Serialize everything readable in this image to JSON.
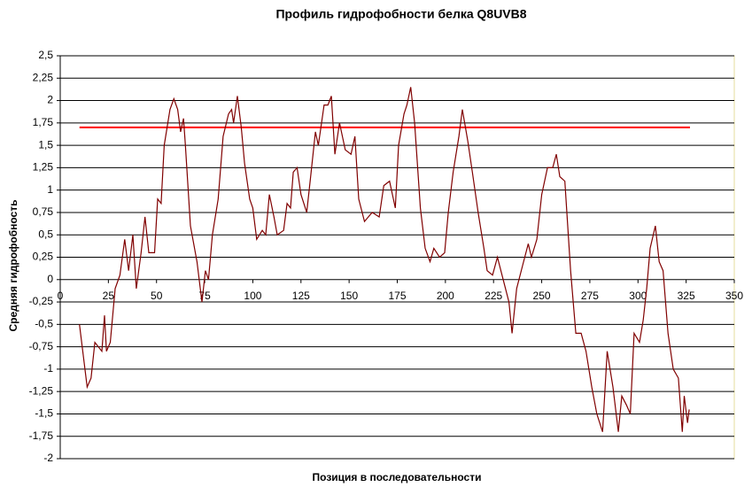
{
  "chart_data": {
    "type": "line",
    "title": "Профиль гидрофобности белка Q8UVB8",
    "x_label": "Позиция в последовательности",
    "y_label": "Средняя гидрофобность",
    "color": "#800000",
    "x": [
      10,
      14,
      16,
      18,
      21.6,
      23,
      24,
      26,
      28.5,
      31,
      33.5,
      35.5,
      37.7,
      39.5,
      42,
      44,
      46,
      49,
      50.6,
      52.4,
      54,
      57,
      59,
      61,
      62.5,
      64,
      65,
      67.6,
      71,
      73.6,
      75.4,
      77,
      79,
      82,
      84.6,
      87.4,
      89,
      90,
      92,
      94,
      95.7,
      98.4,
      100,
      102,
      104.9,
      106.7,
      108.6,
      111,
      112.7,
      116,
      117.8,
      119.6,
      121,
      123,
      125,
      128,
      130,
      132.5,
      134,
      137,
      139,
      140.8,
      142.6,
      145,
      148,
      151,
      153,
      155,
      158,
      162,
      165.6,
      168,
      171,
      174,
      175.7,
      178.5,
      180,
      182,
      184,
      187,
      189.5,
      192,
      194,
      197,
      199.6,
      201.5,
      204,
      207,
      208.8,
      211.6,
      214,
      217,
      220,
      221.7,
      224.5,
      227,
      230,
      233,
      234.6,
      237,
      240,
      243,
      244.7,
      247.5,
      250,
      253,
      255.7,
      257.6,
      259.4,
      262,
      265,
      267.7,
      270.5,
      273,
      276,
      278.6,
      281.6,
      284,
      287,
      289.8,
      291.6,
      294,
      296,
      298,
      300.8,
      302.7,
      304.5,
      306.3,
      309,
      311,
      313,
      315.6,
      318.3,
      321,
      323,
      324,
      325.7,
      326.6
    ],
    "values": [
      -0.5,
      -1.2,
      -1.1,
      -0.7,
      -0.8,
      -0.4,
      -0.8,
      -0.7,
      -0.1,
      0.05,
      0.45,
      0.1,
      0.5,
      -0.1,
      0.3,
      0.7,
      0.3,
      0.3,
      0.9,
      0.85,
      1.5,
      1.9,
      2.02,
      1.9,
      1.65,
      1.8,
      1.5,
      0.6,
      0.2,
      -0.25,
      0.1,
      0,
      0.5,
      0.9,
      1.6,
      1.85,
      1.9,
      1.75,
      2.05,
      1.7,
      1.3,
      0.9,
      0.8,
      0.45,
      0.55,
      0.5,
      0.95,
      0.7,
      0.5,
      0.55,
      0.85,
      0.8,
      1.2,
      1.25,
      0.95,
      0.75,
      1.15,
      1.65,
      1.5,
      1.95,
      1.95,
      2.05,
      1.4,
      1.75,
      1.45,
      1.4,
      1.6,
      0.9,
      0.65,
      0.75,
      0.7,
      1.05,
      1.1,
      0.8,
      1.5,
      1.85,
      1.95,
      2.15,
      1.75,
      0.8,
      0.35,
      0.2,
      0.35,
      0.25,
      0.3,
      0.75,
      1.2,
      1.6,
      1.9,
      1.55,
      1.2,
      0.75,
      0.35,
      0.1,
      0.05,
      0.25,
      0,
      -0.25,
      -0.6,
      -0.1,
      0.15,
      0.4,
      0.25,
      0.45,
      0.95,
      1.25,
      1.25,
      1.4,
      1.15,
      1.1,
      0.1,
      -0.6,
      -0.6,
      -0.8,
      -1.2,
      -1.5,
      -1.7,
      -0.8,
      -1.2,
      -1.7,
      -1.3,
      -1.4,
      -1.5,
      -0.6,
      -0.7,
      -0.45,
      -0.1,
      0.35,
      0.6,
      0.2,
      0.1,
      -0.6,
      -1.0,
      -1.1,
      -1.7,
      -1.3,
      -1.6,
      -1.45
    ],
    "threshold": {
      "x": [
        10,
        327
      ],
      "value": 1.7,
      "color": "#ff0000"
    },
    "xlim": [
      0,
      350
    ],
    "xticks": [
      0,
      25,
      50,
      75,
      100,
      125,
      150,
      175,
      200,
      225,
      250,
      275,
      300,
      325,
      350
    ],
    "ylim": [
      -2,
      2.5
    ],
    "yticks": [
      {
        "value": 2.5,
        "label": "2,5"
      },
      {
        "value": 2.25,
        "label": "2,25"
      },
      2,
      {
        "value": 1.75,
        "label": "1,75"
      },
      {
        "value": 1.5,
        "label": "1,5"
      },
      {
        "value": 1.25,
        "label": "1,25"
      },
      1,
      {
        "value": 0.75,
        "label": "0,75"
      },
      {
        "value": 0.5,
        "label": "0,5"
      },
      {
        "value": 0.25,
        "label": "0,25"
      },
      0,
      {
        "value": -0.25,
        "label": "-0,25"
      },
      {
        "value": -0.5,
        "label": "-0,5"
      },
      {
        "value": -0.75,
        "label": "-0,75"
      },
      -1,
      {
        "value": -1.25,
        "label": "-1,25"
      },
      {
        "value": -1.5,
        "label": "-1,5"
      },
      {
        "value": -1.75,
        "label": "-1,75"
      },
      -2
    ],
    "grid": true
  }
}
